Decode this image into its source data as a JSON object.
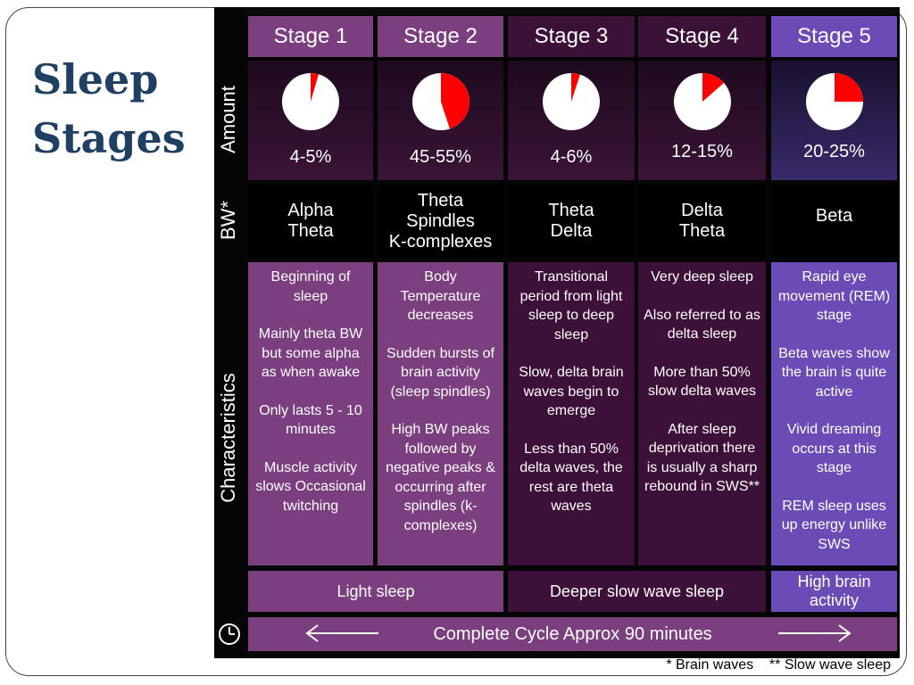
{
  "title_line1": "Sleep",
  "title_line2": "Stages",
  "row_labels": {
    "amount": "Amount",
    "bw": "BW*",
    "characteristics": "Characteristics"
  },
  "stages": [
    {
      "name": "Stage 1",
      "amount": "4-5%",
      "pie_fraction": 0.045,
      "bw_lines": [
        "Alpha",
        "Theta"
      ],
      "characteristics": [
        "Beginning  of sleep",
        "Mainly theta BW but some alpha as when awake",
        "Only lasts 5 - 10 minutes",
        "Muscle activity slows Occasional twitching"
      ]
    },
    {
      "name": "Stage 2",
      "amount": "45-55%",
      "pie_fraction": 0.45,
      "bw_lines": [
        "Theta",
        "Spindles",
        "K-complexes"
      ],
      "characteristics": [
        "Body Temperature decreases",
        "Sudden bursts of brain activity (sleep spindles)",
        "High BW peaks followed by negative peaks & occurring after spindles (k-complexes)"
      ]
    },
    {
      "name": "Stage 3",
      "amount": "4-6%",
      "pie_fraction": 0.05,
      "bw_lines": [
        "Theta",
        "Delta"
      ],
      "characteristics": [
        "Transitional period from light sleep to deep sleep",
        "Slow, delta brain waves begin to emerge",
        "Less than 50% delta waves, the rest are theta waves"
      ]
    },
    {
      "name": "Stage 4",
      "amount": "12-15%",
      "pie_fraction": 0.135,
      "bw_lines": [
        "Delta",
        "Theta"
      ],
      "characteristics": [
        "Very deep sleep",
        "Also referred to as delta sleep",
        "More than 50% slow delta waves",
        "After sleep deprivation there is usually a sharp rebound in SWS**"
      ]
    },
    {
      "name": "Stage 5",
      "amount": "20-25%",
      "pie_fraction": 0.25,
      "bw_lines": [
        "Beta"
      ],
      "characteristics": [
        "Rapid eye movement (REM) stage",
        "Beta waves show the brain is quite active",
        "Vivid dreaming occurs at this stage",
        "REM sleep uses up energy unlike SWS"
      ]
    }
  ],
  "summary": {
    "light": "Light sleep",
    "deeper": "Deeper slow wave sleep",
    "high_line1": "High brain",
    "high_line2": "activity"
  },
  "cycle_text": "Complete Cycle Approx 90 minutes",
  "footnote": "* Brain waves    ** Slow wave sleep",
  "colors": {
    "title": "#1f3f63",
    "light_purple": "#7b3f80",
    "dark_purple": "#3d1039",
    "violet": "#6b4bb5",
    "pie_slice": "#ff0000"
  }
}
